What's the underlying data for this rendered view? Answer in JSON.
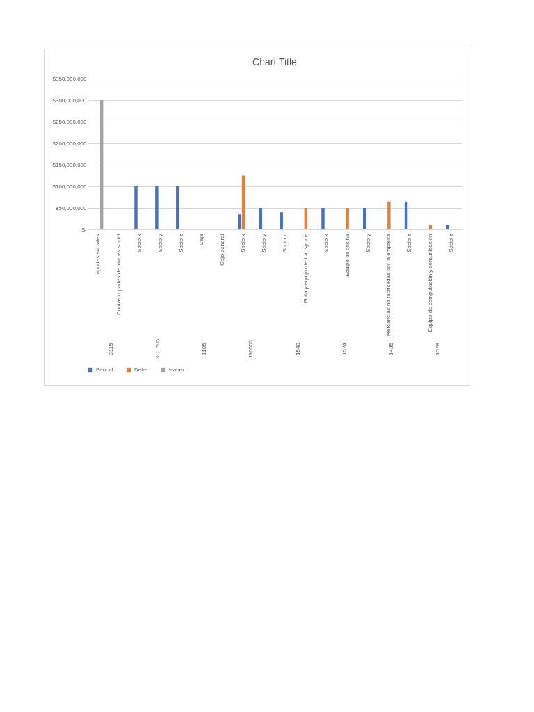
{
  "chart_data": {
    "type": "bar",
    "title": "Chart Title",
    "categories": [
      "aportes sociales",
      "Cuotas o partes de interés social",
      "Socio x",
      "Socio y",
      "Socio z",
      "Caja",
      "Caja general",
      "Socio x",
      "Socio y",
      "Socio z",
      "Flota y equipo de transporte",
      "Socio x",
      "Equipo de oficina",
      "Socio y",
      "Mercancías no fabricadas por la empresa",
      "Socio z",
      "Equipo de computación y comunicación",
      "Socio z"
    ],
    "series": [
      {
        "name": "Parcial",
        "color": "#4472c4",
        "values": [
          null,
          null,
          100000000,
          100000000,
          100000000,
          null,
          null,
          35000000,
          50000000,
          40000000,
          null,
          50000000,
          null,
          50000000,
          null,
          65000000,
          null,
          10000000
        ]
      },
      {
        "name": "Debe",
        "color": "#ed7d31",
        "values": [
          null,
          null,
          null,
          null,
          null,
          null,
          null,
          125000000,
          null,
          null,
          50000000,
          null,
          50000000,
          null,
          65000000,
          null,
          10000000,
          null
        ]
      },
      {
        "name": "Haber",
        "color": "#a5a5a5",
        "values": [
          300000000,
          null,
          null,
          null,
          null,
          null,
          null,
          null,
          null,
          null,
          null,
          null,
          null,
          null,
          null,
          null,
          null,
          null
        ]
      }
    ],
    "ylim": [
      0,
      350000000
    ],
    "yticks": [
      {
        "value": 0,
        "label": "$-"
      },
      {
        "value": 50000000,
        "label": "$50,000,000"
      },
      {
        "value": 100000000,
        "label": "$100,000,000"
      },
      {
        "value": 150000000,
        "label": "$150,000,000"
      },
      {
        "value": 200000000,
        "label": "$200,000,000"
      },
      {
        "value": 250000000,
        "label": "$250,000,000"
      },
      {
        "value": 300000000,
        "label": "$300,000,000"
      },
      {
        "value": 350000000,
        "label": "$350,000,000"
      }
    ],
    "grid": "y",
    "legend": "bottom",
    "annotations": [
      "3115",
      "3 11505",
      "1105",
      "110505",
      "1540",
      "1524",
      "1435",
      "1528"
    ]
  }
}
